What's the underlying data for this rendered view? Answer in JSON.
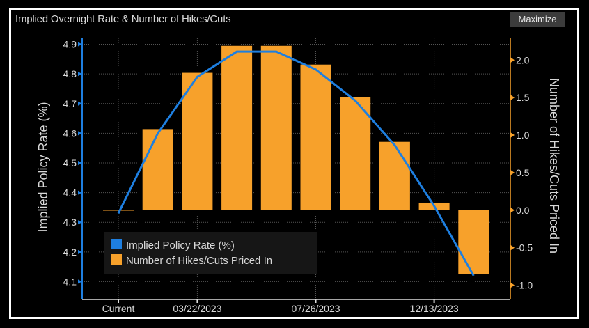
{
  "header": {
    "title": "Implied Overnight Rate & Number of Hikes/Cuts",
    "maximize_label": "Maximize"
  },
  "colors": {
    "line": "#1e7fe0",
    "bars": "#f7a12b",
    "background": "#000000",
    "text": "#d8d8d8"
  },
  "chart_data": {
    "type": "bar+line",
    "title": "Implied Overnight Rate & Number of Hikes/Cuts",
    "categories": [
      "Current",
      "",
      "03/22/2023",
      "",
      "",
      "07/26/2023",
      "",
      "",
      "12/13/2023",
      ""
    ],
    "x_tick_labels": [
      "Current",
      "03/22/2023",
      "07/26/2023",
      "12/13/2023"
    ],
    "series": [
      {
        "name": "Implied Policy Rate (%)",
        "type": "line",
        "axis": "left",
        "values": [
          4.33,
          4.6,
          4.79,
          4.875,
          4.875,
          4.815,
          4.71,
          4.56,
          4.355,
          4.12
        ]
      },
      {
        "name": "Number of Hikes/Cuts Priced In",
        "type": "bar",
        "axis": "right",
        "values": [
          0.0,
          1.08,
          1.83,
          2.19,
          2.19,
          1.94,
          1.51,
          0.91,
          0.1,
          -0.85
        ]
      }
    ],
    "ylabel_left": "Implied Policy Rate (%)",
    "ylabel_right": "Number of Hikes/Cuts Priced In",
    "ylim_left": [
      4.04,
      4.92
    ],
    "ylim_right": [
      -1.19,
      2.29
    ],
    "yticks_left": [
      "4.9",
      "4.8",
      "4.7",
      "4.6",
      "4.5",
      "4.4",
      "4.3",
      "4.2",
      "4.1"
    ],
    "yticks_right": [
      "2.0",
      "1.5",
      "1.0",
      "0.5",
      "0.0",
      "-0.5",
      "-1.0"
    ],
    "grid": true,
    "legend_position": "bottom-left"
  }
}
